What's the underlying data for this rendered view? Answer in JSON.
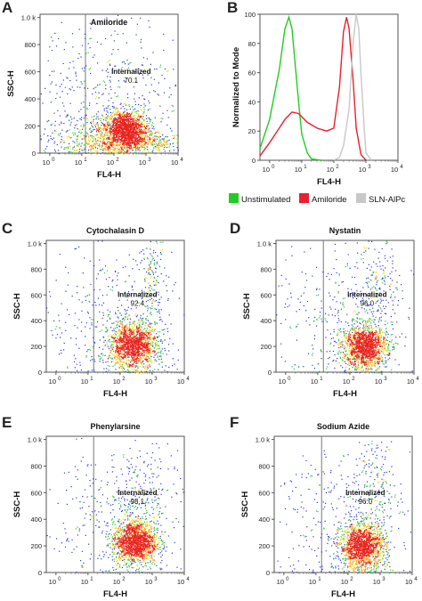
{
  "chart_data": [
    {
      "panel_letter": "A",
      "type": "scatter",
      "title": "Amiloride",
      "xlabel": "FL4-H",
      "ylabel": "SSC-H",
      "x_scale": "log",
      "xlim": [
        0.5,
        10000
      ],
      "ylim": [
        0,
        1024
      ],
      "x_ticks": [
        "10",
        "0",
        "10",
        "1",
        "10",
        "2",
        "10",
        "3",
        "10",
        "4"
      ],
      "y_ticks": [
        "0",
        "200",
        "400",
        "600",
        "800",
        "1.0 k"
      ],
      "gate_label": "Internalized",
      "gate_value": "70.1",
      "gate_x": 13,
      "populations": [
        {
          "cx": 2.6,
          "cy": 80,
          "sx": 0.85,
          "sy": 35,
          "n": 450
        },
        {
          "cx": 2.35,
          "cy": 180,
          "sx": 0.35,
          "sy": 70,
          "n": 1400
        },
        {
          "cx": 1.5,
          "cy": 120,
          "sx": 0.9,
          "sy": 90,
          "n": 500
        },
        {
          "cx": 1.8,
          "cy": 500,
          "sx": 1.2,
          "sy": 260,
          "n": 380
        }
      ]
    },
    {
      "panel_letter": "B",
      "type": "line",
      "title": "",
      "xlabel": "FL4-H",
      "ylabel": "Normalized to Mode",
      "x_scale": "log",
      "xlim": [
        0.5,
        10000
      ],
      "ylim": [
        0,
        100
      ],
      "x_ticks": [
        "10",
        "0",
        "10",
        "1",
        "10",
        "2",
        "10",
        "3",
        "10",
        "4"
      ],
      "y_ticks": [
        "0",
        "20",
        "40",
        "60",
        "80",
        "100"
      ],
      "series": [
        {
          "name": "Unstimulated",
          "color": "#22cc22",
          "x": [
            0.5,
            1,
            2,
            3,
            4,
            5,
            6,
            8,
            10,
            15,
            20,
            40
          ],
          "y": [
            8,
            28,
            62,
            90,
            98,
            90,
            70,
            40,
            18,
            5,
            1,
            0
          ]
        },
        {
          "name": "Amiloride",
          "color": "#e8202f",
          "x": [
            0.5,
            1,
            2,
            3,
            5,
            8,
            15,
            30,
            60,
            100,
            150,
            200,
            250,
            300,
            400,
            500,
            700,
            1000
          ],
          "y": [
            3,
            12,
            22,
            28,
            33,
            32,
            26,
            22,
            20,
            22,
            50,
            88,
            98,
            90,
            55,
            22,
            4,
            0
          ]
        },
        {
          "name": "SLN-AlPc",
          "color": "#c8c8c8",
          "x": [
            100,
            150,
            200,
            300,
            400,
            500,
            600,
            700,
            900,
            1000,
            1500
          ],
          "y": [
            0,
            2,
            10,
            35,
            80,
            100,
            90,
            60,
            20,
            5,
            0
          ]
        }
      ],
      "legend": {
        "placement": "bottom"
      }
    },
    {
      "panel_letter": "C",
      "type": "scatter",
      "title": "Cytochalasin D",
      "xlabel": "FL4-H",
      "ylabel": "SSC-H",
      "x_scale": "log",
      "xlim": [
        0.5,
        10000
      ],
      "ylim": [
        0,
        1024
      ],
      "x_ticks": [
        "10",
        "0",
        "10",
        "1",
        "10",
        "2",
        "10",
        "3",
        "10",
        "4"
      ],
      "y_ticks": [
        "0",
        "200",
        "400",
        "600",
        "800",
        "1.0 k"
      ],
      "gate_label": "Internalized",
      "gate_value": "92.4",
      "gate_x": 15,
      "populations": [
        {
          "cx": 2.4,
          "cy": 210,
          "sx": 0.38,
          "sy": 90,
          "n": 1500
        },
        {
          "cx": 3.0,
          "cy": 700,
          "sx": 0.2,
          "sy": 180,
          "n": 150
        },
        {
          "cx": 1.8,
          "cy": 400,
          "sx": 1.1,
          "sy": 300,
          "n": 400
        }
      ]
    },
    {
      "panel_letter": "D",
      "type": "scatter",
      "title": "Nystatin",
      "xlabel": "FL4-H",
      "ylabel": "SSC-H",
      "x_scale": "log",
      "xlim": [
        0.5,
        10000
      ],
      "ylim": [
        0,
        1024
      ],
      "x_ticks": [
        "10",
        "0",
        "10",
        "1",
        "10",
        "2",
        "10",
        "3",
        "10",
        "4"
      ],
      "y_ticks": [
        "0",
        "200",
        "400",
        "600",
        "800",
        "1.0 k"
      ],
      "gate_label": "Internalized",
      "gate_value": "96.0",
      "gate_x": 15,
      "populations": [
        {
          "cx": 2.45,
          "cy": 200,
          "sx": 0.35,
          "sy": 85,
          "n": 1500
        },
        {
          "cx": 2.9,
          "cy": 700,
          "sx": 0.3,
          "sy": 180,
          "n": 150
        },
        {
          "cx": 1.8,
          "cy": 400,
          "sx": 1.1,
          "sy": 300,
          "n": 350
        }
      ]
    },
    {
      "panel_letter": "E",
      "type": "scatter",
      "title": "Phenylarsine",
      "xlabel": "FL4-H",
      "ylabel": "SSC-H",
      "x_scale": "log",
      "xlim": [
        0.5,
        10000
      ],
      "ylim": [
        0,
        1024
      ],
      "x_ticks": [
        "10",
        "0",
        "10",
        "1",
        "10",
        "2",
        "10",
        "3",
        "10",
        "4"
      ],
      "y_ticks": [
        "0",
        "200",
        "400",
        "600",
        "800",
        "1.0 k"
      ],
      "gate_label": "Internalized",
      "gate_value": "98.1",
      "gate_x": 15,
      "populations": [
        {
          "cx": 2.45,
          "cy": 230,
          "sx": 0.35,
          "sy": 80,
          "n": 1500
        },
        {
          "cx": 2.6,
          "cy": 500,
          "sx": 0.5,
          "sy": 200,
          "n": 250
        },
        {
          "cx": 1.8,
          "cy": 400,
          "sx": 1.1,
          "sy": 300,
          "n": 300
        }
      ]
    },
    {
      "panel_letter": "F",
      "type": "scatter",
      "title": "Sodium Azide",
      "xlabel": "FL4-H",
      "ylabel": "SSC-H",
      "x_scale": "log",
      "xlim": [
        0.5,
        10000
      ],
      "ylim": [
        0,
        1024
      ],
      "x_ticks": [
        "10",
        "0",
        "10",
        "1",
        "10",
        "2",
        "10",
        "3",
        "10",
        "4"
      ],
      "y_ticks": [
        "0",
        "200",
        "400",
        "600",
        "800",
        "1.0 k"
      ],
      "gate_label": "Internalized",
      "gate_value": "96.0",
      "gate_x": 15,
      "populations": [
        {
          "cx": 2.45,
          "cy": 200,
          "sx": 0.36,
          "sy": 85,
          "n": 1500
        },
        {
          "cx": 2.9,
          "cy": 650,
          "sx": 0.3,
          "sy": 200,
          "n": 150
        },
        {
          "cx": 1.8,
          "cy": 400,
          "sx": 1.1,
          "sy": 300,
          "n": 380
        }
      ]
    }
  ]
}
